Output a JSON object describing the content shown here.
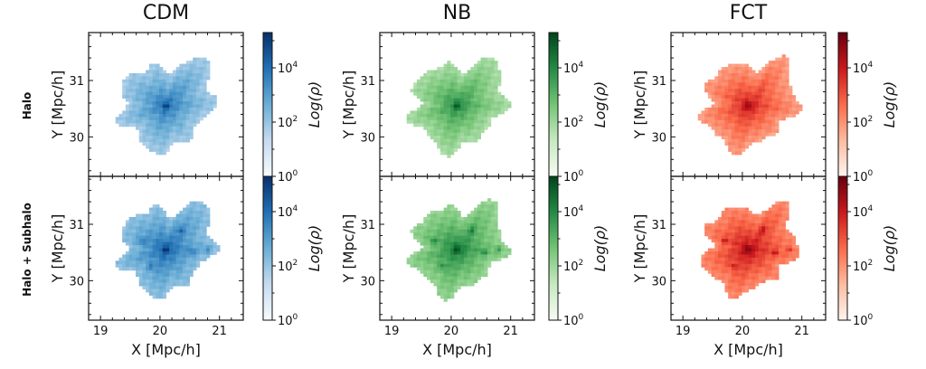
{
  "figure": {
    "row_labels": [
      "Halo",
      "Halo + Subhalo"
    ],
    "columns": [
      {
        "title": "CDM",
        "cmap": "Blues",
        "colors": [
          "#f7fbff",
          "#c6dbef",
          "#6baed6",
          "#2171b5",
          "#08306b"
        ]
      },
      {
        "title": "NB",
        "cmap": "Greens",
        "colors": [
          "#f7fcf5",
          "#c7e9c0",
          "#74c476",
          "#238b45",
          "#00441b"
        ]
      },
      {
        "title": "FCT",
        "cmap": "Reds",
        "colors": [
          "#fff5f0",
          "#fcbba1",
          "#fb6a4a",
          "#cb181d",
          "#67000d"
        ]
      }
    ],
    "xlabel": "X [Mpc/h]",
    "ylabel": "Y [Mpc/h]",
    "cbar_label": "Log(ρ)",
    "xticks": [
      "19",
      "20",
      "21"
    ],
    "yticks": [
      "30",
      "31"
    ],
    "cbar_ticks": [
      {
        "base": "10",
        "exp": "0"
      },
      {
        "base": "10",
        "exp": "2"
      },
      {
        "base": "10",
        "exp": "4"
      }
    ]
  },
  "chart_data": {
    "type": "heatmap",
    "description_of_panels": "2 rows x 3 columns of 2D projected density maps",
    "xlim": [
      18.8,
      21.4
    ],
    "ylim": [
      29.3,
      31.85
    ],
    "xticks": [
      19,
      20,
      21
    ],
    "yticks": [
      30,
      31
    ],
    "cbar_log_range": [
      0,
      5.3
    ],
    "cbar_ticks": [
      1,
      100,
      10000
    ],
    "halo_center": [
      20.1,
      30.55
    ]
  }
}
